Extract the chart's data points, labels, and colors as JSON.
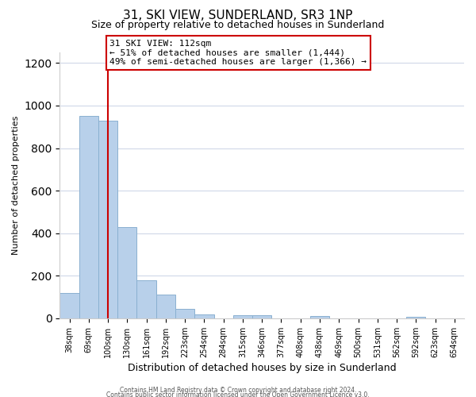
{
  "title": "31, SKI VIEW, SUNDERLAND, SR3 1NP",
  "subtitle": "Size of property relative to detached houses in Sunderland",
  "xlabel": "Distribution of detached houses by size in Sunderland",
  "ylabel": "Number of detached properties",
  "footnote1": "Contains HM Land Registry data © Crown copyright and database right 2024.",
  "footnote2": "Contains public sector information licensed under the Open Government Licence v3.0.",
  "bar_labels": [
    "38sqm",
    "69sqm",
    "100sqm",
    "130sqm",
    "161sqm",
    "192sqm",
    "223sqm",
    "254sqm",
    "284sqm",
    "315sqm",
    "346sqm",
    "377sqm",
    "408sqm",
    "438sqm",
    "469sqm",
    "500sqm",
    "531sqm",
    "562sqm",
    "592sqm",
    "623sqm",
    "654sqm"
  ],
  "bar_values": [
    120,
    950,
    930,
    430,
    180,
    110,
    45,
    20,
    0,
    15,
    15,
    0,
    0,
    10,
    0,
    0,
    0,
    0,
    8,
    0,
    0
  ],
  "bar_color": "#b8d0ea",
  "bar_edge_color": "#8ab0d0",
  "vline_x": 2.0,
  "vline_color": "#cc0000",
  "annotation_text": "31 SKI VIEW: 112sqm\n← 51% of detached houses are smaller (1,444)\n49% of semi-detached houses are larger (1,366) →",
  "annotation_box_color": "#ffffff",
  "annotation_box_edge_color": "#cc0000",
  "ylim": [
    0,
    1250
  ],
  "yticks": [
    0,
    200,
    400,
    600,
    800,
    1000,
    1200
  ],
  "background_color": "#ffffff",
  "grid_color": "#d0d8e8"
}
